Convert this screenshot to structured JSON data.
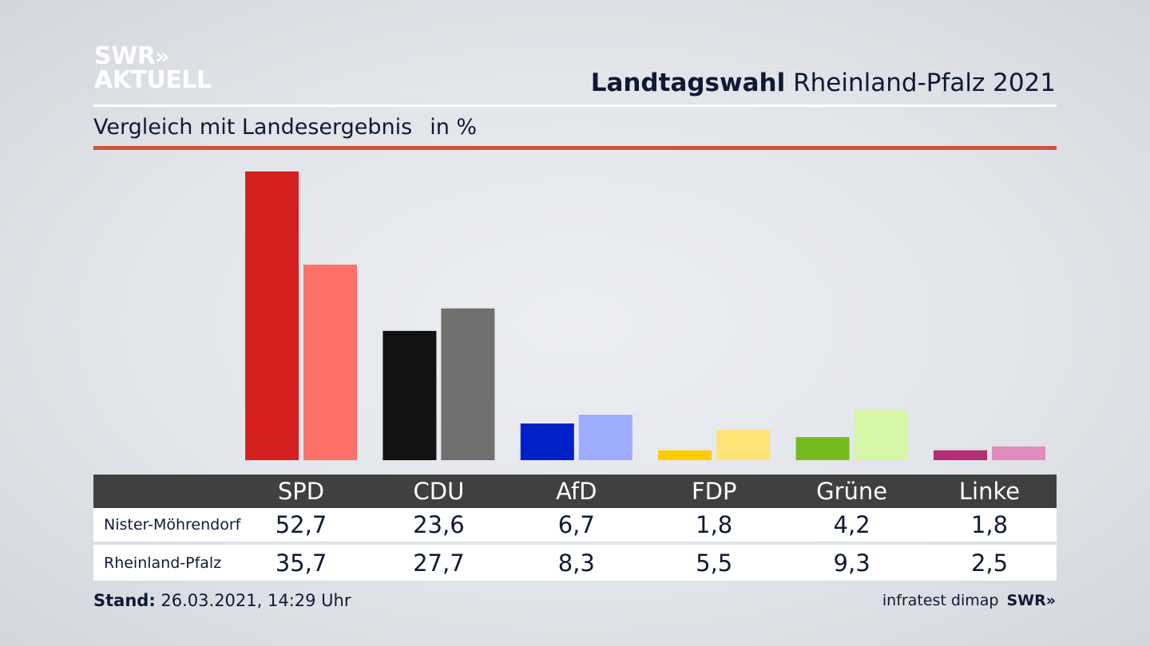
{
  "logo": {
    "line1": "SWR",
    "chevrons": "»",
    "line2": "AKTUELL"
  },
  "headline": {
    "bold": "Landtagswahl",
    "rest": " Rheinland-Pfalz 2021"
  },
  "subtitle": {
    "text": "Vergleich mit Landesergebnis",
    "unit": "in %"
  },
  "footer": {
    "stand_label": "Stand:",
    "stand_value": " 26.03.2021, 14:29 Uhr",
    "source": "infratest dimap",
    "brand": "SWR»"
  },
  "chart_data": {
    "type": "bar",
    "categories": [
      "SPD",
      "CDU",
      "AfD",
      "FDP",
      "Grüne",
      "Linke"
    ],
    "series": [
      {
        "name": "Nister-Möhrendorf",
        "values": [
          52.7,
          23.6,
          6.7,
          1.8,
          4.2,
          1.8
        ],
        "colors": [
          "#d61f1f",
          "#121212",
          "#0021c7",
          "#ffcc00",
          "#76bb1d",
          "#b32e74"
        ]
      },
      {
        "name": "Rheinland-Pfalz",
        "values": [
          35.7,
          27.7,
          8.3,
          5.5,
          9.3,
          2.5
        ],
        "colors": [
          "#ff7069",
          "#72706f",
          "#9eadfe",
          "#ffe377",
          "#d6f6a8",
          "#e18cbe"
        ]
      }
    ],
    "display": {
      "row1": [
        "52,7",
        "23,6",
        "6,7",
        "1,8",
        "4,2",
        "1,8"
      ],
      "row2": [
        "35,7",
        "27,7",
        "8,3",
        "5,5",
        "9,3",
        "2,5"
      ]
    },
    "ylim": [
      0,
      52.7
    ]
  }
}
